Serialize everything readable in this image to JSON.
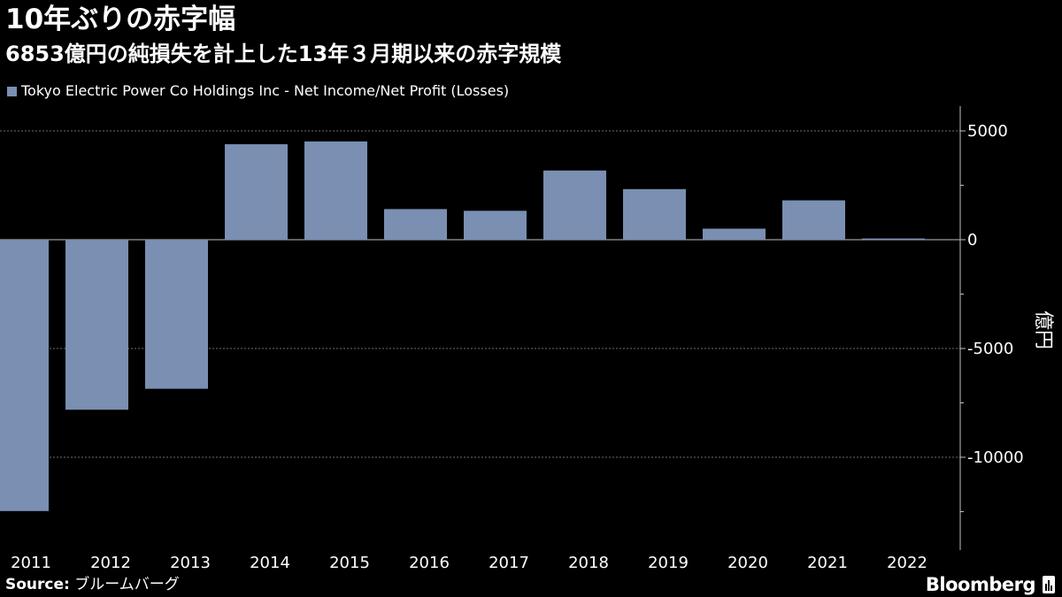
{
  "title": "10年ぶりの赤字幅",
  "subtitle": "6853億円の純損失を計上した13年３月期以来の赤字規模",
  "legend": {
    "label": "Tokyo Electric Power Co Holdings Inc - Net Income/Net Profit (Losses)",
    "color": "#7a8fb2"
  },
  "footer": {
    "source_label": "Source:",
    "source_value": "ブルームバーグ",
    "brand": "Bloomberg"
  },
  "chart_data": {
    "type": "bar",
    "title": "10年ぶりの赤字幅",
    "subtitle": "6853億円の純損失を計上した13年３月期以来の赤字規模",
    "xlabel": "",
    "ylabel": "億円",
    "y_axis_position": "right",
    "categories": [
      "2011",
      "2012",
      "2013",
      "2014",
      "2015",
      "2016",
      "2017",
      "2018",
      "2019",
      "2020",
      "2021",
      "2022"
    ],
    "series": [
      {
        "name": "Tokyo Electric Power Co Holdings Inc - Net Income/Net Profit (Losses)",
        "values": [
          -12473,
          -7816,
          -6853,
          4387,
          4515,
          1407,
          1328,
          3180,
          2325,
          507,
          1808,
          56
        ],
        "color": "#7a8fb2"
      }
    ],
    "yticks": [
      5000,
      0,
      -5000,
      -10000
    ],
    "ytick_labels": [
      "5000",
      "0",
      "-5000",
      "-10000"
    ],
    "ylim": [
      -14000,
      6200
    ],
    "grid": true,
    "legend_position": "top-left"
  }
}
